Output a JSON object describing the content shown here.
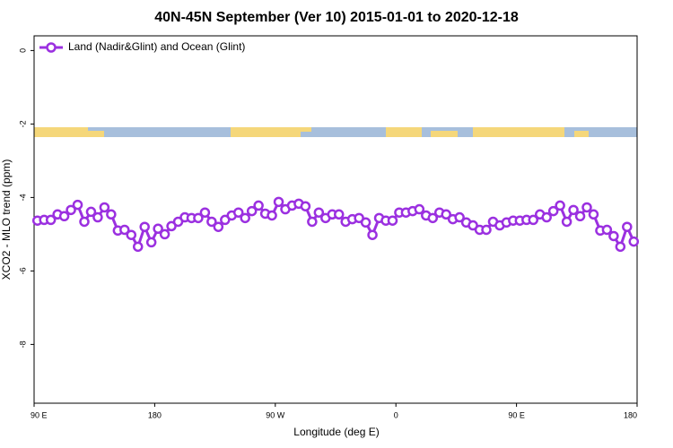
{
  "chart_data": {
    "type": "line",
    "title": "40N-45N September (Ver 10)   2015-01-01 to 2020-12-18",
    "x_label": "Longitude (deg E)",
    "y_label": "XCO2 - MLO trend (ppm)",
    "xlim": [
      90,
      540
    ],
    "xticks": [
      {
        "value": 90,
        "label": "90 E"
      },
      {
        "value": 180,
        "label": "180"
      },
      {
        "value": 270,
        "label": "90 W"
      },
      {
        "value": 360,
        "label": "0"
      },
      {
        "value": 450,
        "label": "90 E"
      },
      {
        "value": 540,
        "label": "180"
      }
    ],
    "ylim": [
      -9.6,
      0.4
    ],
    "yticks": [
      0,
      -2,
      -4,
      -6,
      -8
    ],
    "legend_position": "top-left",
    "x": [
      92.5,
      97.5,
      102.5,
      107.5,
      112.5,
      117.5,
      122.5,
      127.5,
      132.5,
      137.5,
      142.5,
      147.5,
      152.5,
      157.5,
      162.5,
      167.5,
      172.5,
      177.5,
      182.5,
      187.5,
      192.5,
      197.5,
      202.5,
      207.5,
      212.5,
      217.5,
      222.5,
      227.5,
      232.5,
      237.5,
      242.5,
      247.5,
      252.5,
      257.5,
      262.5,
      267.5,
      272.5,
      277.5,
      282.5,
      287.5,
      292.5,
      297.5,
      302.5,
      307.5,
      312.5,
      317.5,
      322.5,
      327.5,
      332.5,
      337.5,
      342.5,
      347.5,
      352.5,
      357.5,
      362.5,
      367.5,
      372.5,
      377.5,
      382.5,
      387.5,
      392.5,
      397.5,
      402.5,
      407.5,
      412.5,
      417.5,
      422.5,
      427.5,
      432.5,
      437.5,
      442.5,
      447.5,
      452.5,
      457.5,
      462.5,
      467.5,
      472.5,
      477.5,
      482.5,
      487.5,
      492.5,
      497.5,
      502.5,
      507.5,
      512.5,
      517.5,
      522.5,
      527.5,
      532.5,
      537.5
    ],
    "series": [
      {
        "name": "Land (Nadir&Glint) and Ocean (Glint)",
        "color": "#9b30e0",
        "values": [
          -4.63,
          -4.61,
          -4.61,
          -4.46,
          -4.51,
          -4.34,
          -4.2,
          -4.66,
          -4.39,
          -4.54,
          -4.27,
          -4.46,
          -4.9,
          -4.88,
          -5.02,
          -5.34,
          -4.8,
          -5.22,
          -4.85,
          -5.0,
          -4.78,
          -4.66,
          -4.54,
          -4.56,
          -4.56,
          -4.41,
          -4.66,
          -4.8,
          -4.61,
          -4.49,
          -4.41,
          -4.56,
          -4.37,
          -4.22,
          -4.44,
          -4.49,
          -4.12,
          -4.32,
          -4.22,
          -4.17,
          -4.24,
          -4.66,
          -4.41,
          -4.56,
          -4.46,
          -4.46,
          -4.66,
          -4.59,
          -4.56,
          -4.68,
          -5.02,
          -4.56,
          -4.63,
          -4.63,
          -4.41,
          -4.41,
          -4.37,
          -4.32,
          -4.49,
          -4.56,
          -4.41,
          -4.46,
          -4.59,
          -4.54,
          -4.68,
          -4.76,
          -4.88,
          -4.88,
          -4.66,
          -4.76,
          -4.68,
          -4.63,
          -4.63,
          -4.61,
          -4.61,
          -4.46,
          -4.54,
          -4.37,
          -4.22,
          -4.66,
          -4.34,
          -4.51,
          -4.27,
          -4.46,
          -4.9,
          -4.88,
          -5.05,
          -5.34,
          -4.8,
          -5.2
        ]
      }
    ]
  }
}
